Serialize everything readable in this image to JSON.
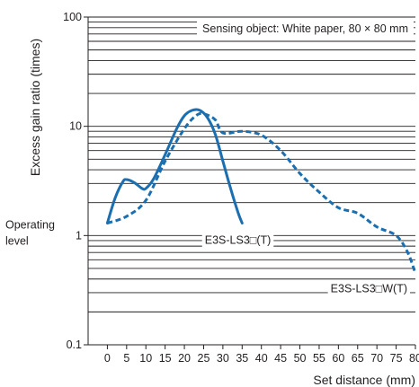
{
  "chart_data": {
    "type": "line",
    "xlabel": "Set distance (mm)",
    "ylabel": "Excess gain ratio (times)",
    "yscale": "log",
    "ylim": [
      0.1,
      100
    ],
    "xlim": [
      -5,
      80
    ],
    "x_ticks": [
      0,
      5,
      10,
      15,
      20,
      25,
      30,
      35,
      40,
      45,
      50,
      55,
      60,
      65,
      70,
      75,
      80
    ],
    "y_ticks": [
      {
        "value": 0.1,
        "label": "0.1"
      },
      {
        "value": 1,
        "label": "1"
      },
      {
        "value": 10,
        "label": "10"
      },
      {
        "value": 100,
        "label": "100"
      }
    ],
    "grid": "horizontal",
    "annotation": "Sensing object: White paper, 80 × 80 mm",
    "operating_level": {
      "value": 1,
      "label_line1": "Operating",
      "label_line2": "level"
    },
    "series": [
      {
        "name": "E3S-LS3□(T)",
        "style": "solid",
        "color": "#1b6fb0",
        "x": [
          0,
          2,
          4,
          5,
          7,
          9,
          10,
          12,
          15,
          18,
          20,
          22,
          24,
          26,
          28,
          30,
          32,
          34,
          35
        ],
        "y": [
          1.3,
          2.2,
          3.1,
          3.25,
          3.05,
          2.7,
          2.7,
          3.3,
          5.5,
          9.5,
          12.5,
          14.0,
          14.0,
          12.0,
          8.5,
          4.8,
          2.7,
          1.6,
          1.3
        ]
      },
      {
        "name": "E3S-LS3□W(T)",
        "style": "dashed",
        "color": "#1b6fb0",
        "x": [
          0,
          5,
          10,
          15,
          20,
          23,
          25,
          28,
          30,
          35,
          40,
          45,
          50,
          55,
          60,
          65,
          70,
          75,
          78,
          80
        ],
        "y": [
          1.3,
          1.5,
          2.1,
          4.8,
          9.5,
          12.5,
          13.0,
          11.5,
          8.7,
          9.0,
          8.3,
          6.0,
          3.7,
          2.5,
          1.8,
          1.6,
          1.2,
          1.0,
          0.7,
          0.45
        ]
      }
    ]
  }
}
